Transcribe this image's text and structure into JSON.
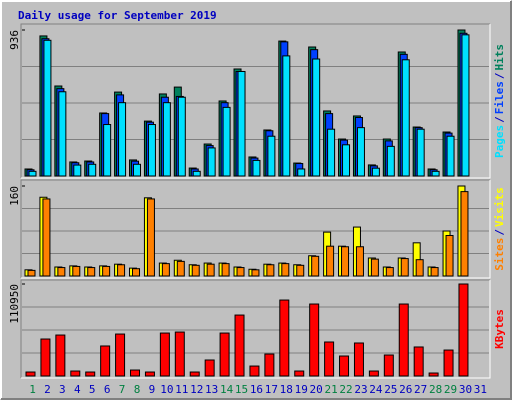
{
  "title": "Daily usage for September 2019",
  "title_color": "#0000c0",
  "legend_separator": "/",
  "chart_data": [
    {
      "type": "bar",
      "ylim": [
        0,
        936
      ],
      "yticks": [
        936
      ],
      "categories": [
        "1",
        "2",
        "3",
        "4",
        "5",
        "6",
        "7",
        "8",
        "9",
        "10",
        "11",
        "12",
        "13",
        "14",
        "15",
        "16",
        "17",
        "18",
        "19",
        "20",
        "21",
        "22",
        "23",
        "24",
        "25",
        "26",
        "27",
        "28",
        "29",
        "30",
        "31"
      ],
      "series": [
        {
          "name": "Hits",
          "color": "#00805c",
          "values": [
            45,
            898,
            577,
            90,
            96,
            404,
            538,
            103,
            352,
            526,
            570,
            51,
            205,
            481,
            686,
            122,
            295,
            865,
            83,
            827,
            417,
            237,
            385,
            71,
            237,
            795,
            314,
            45,
            282,
            936,
            0
          ]
        },
        {
          "name": "Files",
          "color": "#0040ff",
          "values": [
            40,
            880,
            560,
            85,
            90,
            400,
            520,
            95,
            345,
            505,
            510,
            45,
            195,
            470,
            670,
            115,
            290,
            860,
            80,
            810,
            400,
            230,
            375,
            65,
            225,
            780,
            310,
            40,
            275,
            915,
            0
          ]
        },
        {
          "name": "Pages",
          "color": "#00e0ff",
          "values": [
            30,
            870,
            540,
            70,
            75,
            330,
            470,
            75,
            330,
            470,
            505,
            30,
            180,
            440,
            670,
            100,
            255,
            770,
            45,
            750,
            300,
            200,
            310,
            50,
            190,
            745,
            300,
            30,
            255,
            905,
            0
          ]
        }
      ]
    },
    {
      "type": "bar",
      "ylim": [
        0,
        160
      ],
      "yticks": [
        160
      ],
      "series": [
        {
          "name": "Visits",
          "color": "#ffff00",
          "values": [
            11,
            140,
            16,
            18,
            16,
            18,
            21,
            14,
            139,
            23,
            28,
            20,
            23,
            23,
            16,
            12,
            21,
            23,
            20,
            36,
            78,
            53,
            87,
            32,
            16,
            32,
            59,
            16,
            80,
            160,
            0
          ]
        },
        {
          "name": "Sites",
          "color": "#ff8000",
          "values": [
            10,
            137,
            15,
            17,
            15,
            17,
            20,
            13,
            137,
            22,
            26,
            19,
            21,
            22,
            15,
            11,
            20,
            22,
            19,
            35,
            53,
            52,
            52,
            30,
            15,
            31,
            29,
            15,
            72,
            150,
            0
          ]
        }
      ]
    },
    {
      "type": "bar",
      "ylim": [
        0,
        110950
      ],
      "yticks": [
        110950
      ],
      "series": [
        {
          "name": "KBytes",
          "color": "#ff0000",
          "values": [
            4800,
            44600,
            49400,
            6000,
            4800,
            36200,
            50600,
            7200,
            4800,
            51800,
            53000,
            4800,
            19300,
            51800,
            73500,
            12000,
            26500,
            91600,
            6000,
            86800,
            41000,
            24100,
            39800,
            6000,
            25300,
            86800,
            35000,
            3600,
            31300,
            110950,
            0
          ]
        }
      ],
      "category_label_colors": [
        "#008040",
        "#0000c0",
        "#0000c0",
        "#0000c0",
        "#0000c0",
        "#0000c0",
        "#008040",
        "#008040",
        "#0000c0",
        "#0000c0",
        "#0000c0",
        "#0000c0",
        "#0000c0",
        "#008040",
        "#008040",
        "#0000c0",
        "#0000c0",
        "#0000c0",
        "#0000c0",
        "#0000c0",
        "#008040",
        "#008040",
        "#0000c0",
        "#0000c0",
        "#0000c0",
        "#0000c0",
        "#0000c0",
        "#008040",
        "#008040",
        "#0000c0",
        "#0000c0"
      ]
    }
  ]
}
